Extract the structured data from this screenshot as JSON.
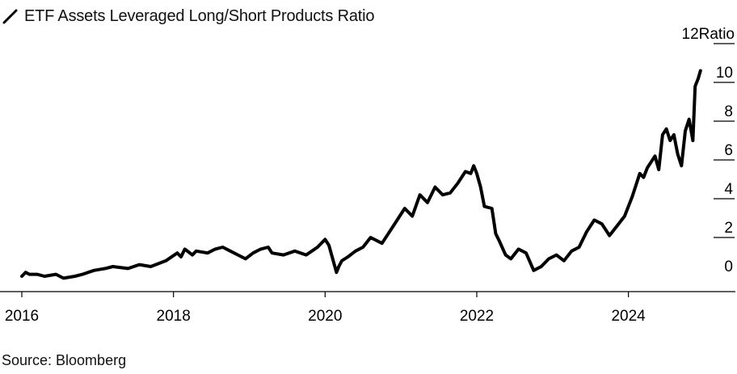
{
  "title": "ETF Assets Leveraged Long/Short Products Ratio",
  "source": "Source: Bloomberg",
  "chart_data": {
    "type": "line",
    "title": "ETF Assets Leveraged Long/Short Products Ratio",
    "ylabel": "Ratio",
    "xlabel": "",
    "xlim": [
      2016.0,
      2025.4
    ],
    "ylim": [
      0,
      12
    ],
    "x_ticks": [
      "2016",
      "2018",
      "2020",
      "2022",
      "2024"
    ],
    "y_ticks": [
      "0",
      "2",
      "4",
      "6",
      "8",
      "10",
      "12"
    ],
    "grid": false,
    "line_color": "#000000",
    "series": [
      {
        "x": [
          2016.0,
          2016.05,
          2016.1,
          2016.2,
          2016.3,
          2016.45,
          2016.55,
          2016.7,
          2016.8,
          2016.95,
          2017.1,
          2017.2,
          2017.4,
          2017.55,
          2017.7,
          2017.9,
          2018.05,
          2018.1,
          2018.15,
          2018.25,
          2018.3,
          2018.45,
          2018.55,
          2018.65,
          2018.75,
          2018.85,
          2018.95,
          2019.05,
          2019.15,
          2019.25,
          2019.3,
          2019.45,
          2019.6,
          2019.75,
          2019.9,
          2020.0,
          2020.05,
          2020.1,
          2020.15,
          2020.18,
          2020.22,
          2020.3,
          2020.4,
          2020.5,
          2020.6,
          2020.75,
          2020.85,
          2020.95,
          2021.05,
          2021.15,
          2021.25,
          2021.35,
          2021.45,
          2021.55,
          2021.65,
          2021.75,
          2021.85,
          2021.92,
          2021.96,
          2022.0,
          2022.05,
          2022.1,
          2022.2,
          2022.25,
          2022.3,
          2022.38,
          2022.45,
          2022.55,
          2022.65,
          2022.75,
          2022.85,
          2022.95,
          2023.05,
          2023.15,
          2023.25,
          2023.35,
          2023.45,
          2023.55,
          2023.65,
          2023.75,
          2023.85,
          2023.95,
          2024.05,
          2024.15,
          2024.2,
          2024.25,
          2024.35,
          2024.4,
          2024.45,
          2024.5,
          2024.55,
          2024.6,
          2024.65,
          2024.7,
          2024.75,
          2024.8,
          2024.85,
          2024.88,
          2024.92,
          2024.95
        ],
        "values": [
          0.0,
          0.2,
          0.1,
          0.1,
          0.0,
          0.1,
          -0.1,
          0.0,
          0.1,
          0.3,
          0.4,
          0.5,
          0.4,
          0.6,
          0.5,
          0.8,
          1.2,
          1.0,
          1.4,
          1.1,
          1.3,
          1.2,
          1.4,
          1.5,
          1.3,
          1.1,
          0.9,
          1.2,
          1.4,
          1.5,
          1.2,
          1.1,
          1.3,
          1.1,
          1.5,
          1.9,
          1.6,
          0.9,
          0.2,
          0.5,
          0.8,
          1.0,
          1.3,
          1.5,
          2.0,
          1.7,
          2.3,
          2.9,
          3.5,
          3.1,
          4.2,
          3.8,
          4.6,
          4.2,
          4.3,
          4.8,
          5.4,
          5.3,
          5.7,
          5.3,
          4.6,
          3.6,
          3.5,
          2.2,
          1.8,
          1.1,
          0.9,
          1.4,
          1.2,
          0.3,
          0.5,
          0.9,
          1.1,
          0.8,
          1.3,
          1.5,
          2.3,
          2.9,
          2.7,
          2.1,
          2.6,
          3.1,
          4.1,
          5.3,
          5.1,
          5.6,
          6.2,
          5.5,
          7.3,
          7.6,
          7.0,
          7.3,
          6.3,
          5.7,
          7.5,
          8.1,
          7.0,
          9.8,
          10.2,
          10.6
        ]
      }
    ]
  }
}
